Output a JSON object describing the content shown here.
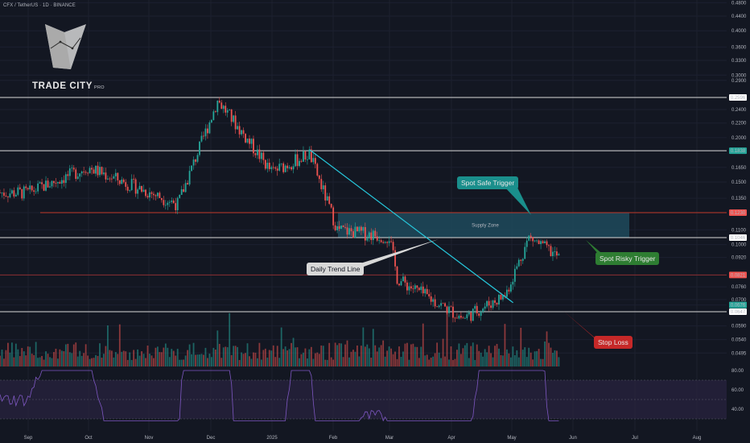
{
  "header": {
    "symbol": "CFX / TetherUS · 1D · BINANCE"
  },
  "brand": {
    "name": "TRADE CITY",
    "suffix": "PRO"
  },
  "callouts": {
    "spot_safe": "Spot Safe Trigger",
    "spot_risky": "Spot Risky Trigger",
    "daily_trend": "Daily Trend Line",
    "stop_loss": "Stop Loss",
    "supply_zone": "Supply Zone"
  },
  "colors": {
    "background": "#131722",
    "up": "#26a69a",
    "down": "#ef5350",
    "supply_zone": "#1f4a5c",
    "trendline": "#26c6da",
    "rsi_line": "#7e57c2",
    "rsi_band": "#2a2340"
  },
  "chart_data": {
    "type": "candlestick",
    "y_scale": "log",
    "y_ticks": [
      0.48,
      0.44,
      0.4,
      0.36,
      0.33,
      0.3,
      0.29,
      0.2596,
      0.24,
      0.22,
      0.2,
      0.1838,
      0.165,
      0.15,
      0.135,
      0.123,
      0.11,
      0.1046,
      0.1,
      0.092,
      0.0821,
      0.076,
      0.07,
      0.0676,
      0.0647,
      0.059,
      0.054,
      0.0495
    ],
    "y_tick_labels": [
      "0.4800",
      "0.4400",
      "0.4000",
      "0.3600",
      "0.3300",
      "0.3000",
      "0.2900",
      "0.2596",
      "0.2400",
      "0.2200",
      "0.2000",
      "0.1838",
      "0.1650",
      "0.1500",
      "0.1350",
      "0.1230",
      "0.1100",
      "0.1046",
      "0.1000",
      "0.0920",
      "0.0821",
      "0.0760",
      "0.0700",
      "0.0676",
      "0.0647",
      "0.0590",
      "0.0540",
      "0.0495"
    ],
    "highlighted_levels": [
      {
        "label": "0.2596",
        "color": "#ffffff"
      },
      {
        "label": "0.1838",
        "color": "#26a69a"
      },
      {
        "label": "0.1230",
        "color": "#ef5350"
      },
      {
        "label": "0.1046",
        "color": "#ffffff"
      },
      {
        "label": "0.0821",
        "color": "#ef5350"
      },
      {
        "label": "0.0676",
        "color": "#26a69a"
      },
      {
        "label": "0.0647",
        "color": "#ffffff"
      }
    ],
    "x_labels": [
      "Sep",
      "Oct",
      "Nov",
      "Dec",
      "2025",
      "Feb",
      "Mar",
      "Apr",
      "May",
      "Jun",
      "Jul",
      "Aug"
    ],
    "horizontal_levels": [
      0.2596,
      0.1838,
      0.1046,
      0.0647
    ],
    "resistance_level": 0.123,
    "support_level": 0.0821,
    "supply_zone": {
      "low": 0.1046,
      "high": 0.123
    },
    "key_points": [
      {
        "date": "2024-09-01",
        "close": 0.14
      },
      {
        "date": "2024-10-01",
        "close": 0.165
      },
      {
        "date": "2024-11-15",
        "close": 0.13
      },
      {
        "date": "2024-12-05",
        "close": 0.255
      },
      {
        "date": "2025-01-01",
        "close": 0.16
      },
      {
        "date": "2025-01-20",
        "close": 0.18
      },
      {
        "date": "2025-02-03",
        "close": 0.11
      },
      {
        "date": "2025-03-01",
        "close": 0.105
      },
      {
        "date": "2025-03-05",
        "close": 0.08
      },
      {
        "date": "2025-04-07",
        "close": 0.062
      },
      {
        "date": "2025-04-28",
        "close": 0.072
      },
      {
        "date": "2025-05-10",
        "close": 0.105
      },
      {
        "date": "2025-05-25",
        "close": 0.092
      }
    ],
    "rsi": {
      "y_ticks": [
        80.0,
        60.0,
        40.0
      ],
      "y_tick_labels": [
        "80.00",
        "60.00",
        "40.00"
      ]
    }
  }
}
